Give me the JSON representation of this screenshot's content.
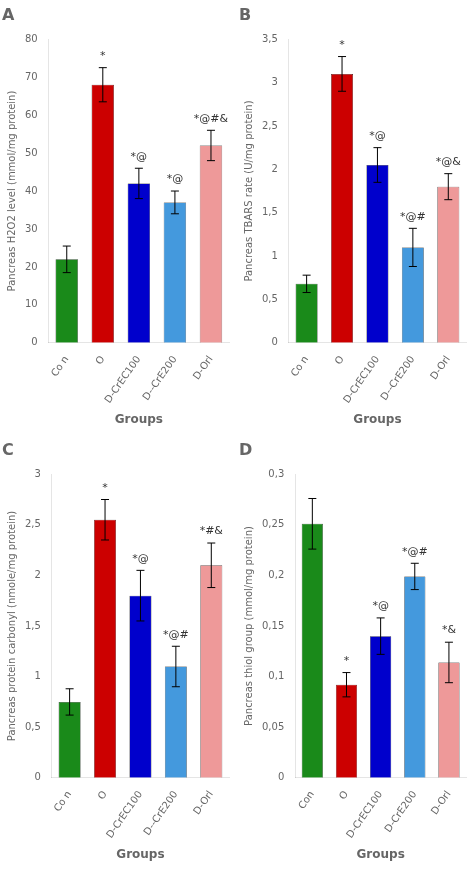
{
  "chart_data": [
    {
      "type": "bar",
      "title": "A",
      "ylabel": "Pancreas H2O2 level (mmol/mg protein)",
      "xlabel": "Groups",
      "ylim": [
        0,
        80
      ],
      "yticks": [
        0,
        10,
        20,
        30,
        40,
        50,
        60,
        70,
        80
      ],
      "categories": [
        "Co n",
        "O",
        "D-CrEC100",
        "D--CrE200",
        "D-Orl"
      ],
      "values": [
        22,
        68,
        42,
        37,
        52
      ],
      "errors": [
        3.5,
        4.5,
        4,
        3,
        4
      ],
      "colors": [
        "#1a8a1a",
        "#cc0000",
        "#0000cc",
        "#4499dd",
        "#ee9999"
      ],
      "annotations": [
        null,
        "*",
        "*@",
        "*@",
        "*@#&"
      ],
      "grid": false
    },
    {
      "type": "bar",
      "title": "B",
      "ylabel": "Pancreas TBARS rate (U/mg protein)",
      "xlabel": "Groups",
      "ylim": [
        0,
        3.5
      ],
      "yticks": [
        0,
        {
          "value": 0.5,
          "label": "0,5"
        },
        1,
        {
          "value": 1.5,
          "label": "1,5"
        },
        2,
        {
          "value": 2.5,
          "label": "2,5"
        },
        3,
        {
          "value": 3.5,
          "label": "3,5"
        }
      ],
      "categories": [
        "Co n",
        "O",
        "D-CrEC100",
        "D--CrE200",
        "D-Orl"
      ],
      "values": [
        0.68,
        3.1,
        2.05,
        1.1,
        1.8
      ],
      "errors": [
        0.1,
        0.2,
        0.2,
        0.22,
        0.15
      ],
      "colors": [
        "#1a8a1a",
        "#cc0000",
        "#0000cc",
        "#4499dd",
        "#ee9999"
      ],
      "annotations": [
        null,
        "*",
        "*@",
        "*@#",
        "*@&"
      ],
      "grid": false
    },
    {
      "type": "bar",
      "title": "C",
      "ylabel": "Pancreas protein carbonyl (nmole/mg protein)",
      "xlabel": "Groups",
      "ylim": [
        0,
        3.0
      ],
      "yticks": [
        0,
        {
          "value": 0.5,
          "label": "0,5"
        },
        1,
        {
          "value": 1.5,
          "label": "1,5"
        },
        2,
        {
          "value": 2.5,
          "label": "2,5"
        },
        3
      ],
      "categories": [
        "Co n",
        "O",
        "D-CrEC100",
        "D--CrE200",
        "D-Orl"
      ],
      "values": [
        0.75,
        2.55,
        1.8,
        1.1,
        2.1
      ],
      "errors": [
        0.13,
        0.2,
        0.25,
        0.2,
        0.22
      ],
      "colors": [
        "#1a8a1a",
        "#cc0000",
        "#0000cc",
        "#4499dd",
        "#ee9999"
      ],
      "annotations": [
        null,
        "*",
        "*@",
        "*@#",
        "*#&"
      ],
      "grid": false
    },
    {
      "type": "bar",
      "title": "D",
      "ylabel": "Pancreas thiol group (mmol/mg protein)",
      "xlabel": "Groups",
      "ylim": [
        0,
        0.3
      ],
      "yticks": [
        0,
        {
          "value": 0.05,
          "label": "0,05"
        },
        {
          "value": 0.1,
          "label": "0,1"
        },
        {
          "value": 0.15,
          "label": "0,15"
        },
        {
          "value": 0.2,
          "label": "0,2"
        },
        {
          "value": 0.25,
          "label": "0,25"
        },
        {
          "value": 0.3,
          "label": "0,3"
        }
      ],
      "categories": [
        "Con",
        "O",
        "D-CrEC100",
        "D-CrE200",
        "D-Orl"
      ],
      "values": [
        0.251,
        0.092,
        0.14,
        0.199,
        0.114
      ],
      "errors": [
        0.025,
        0.012,
        0.018,
        0.013,
        0.02
      ],
      "colors": [
        "#1a8a1a",
        "#cc0000",
        "#0000cc",
        "#4499dd",
        "#ee9999"
      ],
      "annotations": [
        null,
        "*",
        "*@",
        "*@#",
        "*&"
      ],
      "grid": false
    }
  ]
}
